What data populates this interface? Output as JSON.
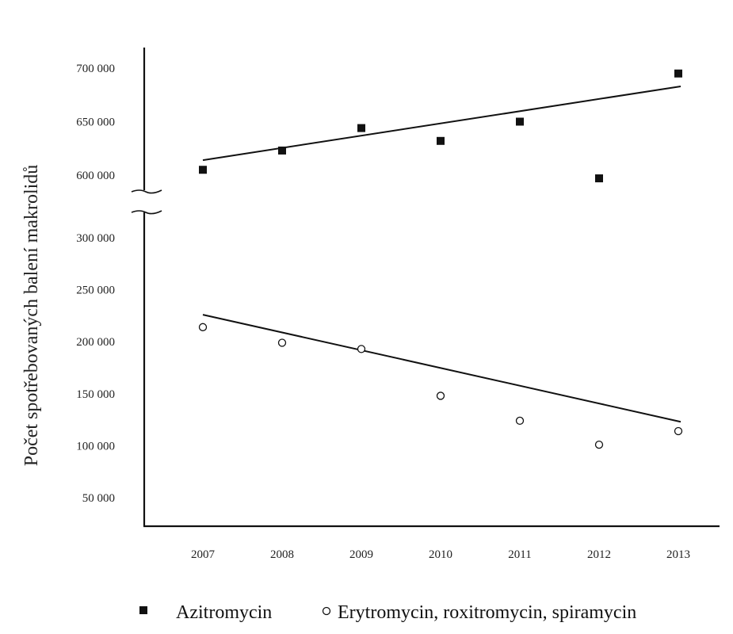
{
  "chart_data": {
    "type": "scatter",
    "ylabel": "Počet spotřebovaných balení makrolidů",
    "xlabel": "",
    "x": [
      2007,
      2008,
      2009,
      2010,
      2011,
      2012,
      2013
    ],
    "x_tick_labels": [
      "2007",
      "2008",
      "2009",
      "2010",
      "2011",
      "2012",
      "2013"
    ],
    "y_tick_labels_lower": [
      "50 000",
      "100 000",
      "150 000",
      "200 000",
      "250 000",
      "300 000"
    ],
    "y_tick_labels_upper": [
      "600 000",
      "650 000",
      "700 000"
    ],
    "y_ticks_lower": [
      50000,
      100000,
      150000,
      200000,
      250000,
      300000
    ],
    "y_ticks_upper": [
      600000,
      650000,
      700000
    ],
    "y_axis_break": true,
    "y_segments": [
      [
        0,
        300000
      ],
      [
        585000,
        700000
      ]
    ],
    "grid": false,
    "legend_position": "bottom",
    "series": [
      {
        "name": "Azitromycin",
        "marker": "filled-square",
        "color": "#111111",
        "values": [
          605000,
          623000,
          644000,
          632000,
          650000,
          597000,
          695000
        ],
        "trendline": [
          614000,
          683000
        ]
      },
      {
        "name": "Erytromycin, roxitromycin, spiramycin",
        "marker": "open-circle",
        "color": "#111111",
        "values": [
          214000,
          199000,
          193000,
          148000,
          124000,
          101000,
          114000
        ],
        "trendline": [
          226000,
          123000
        ]
      }
    ]
  }
}
